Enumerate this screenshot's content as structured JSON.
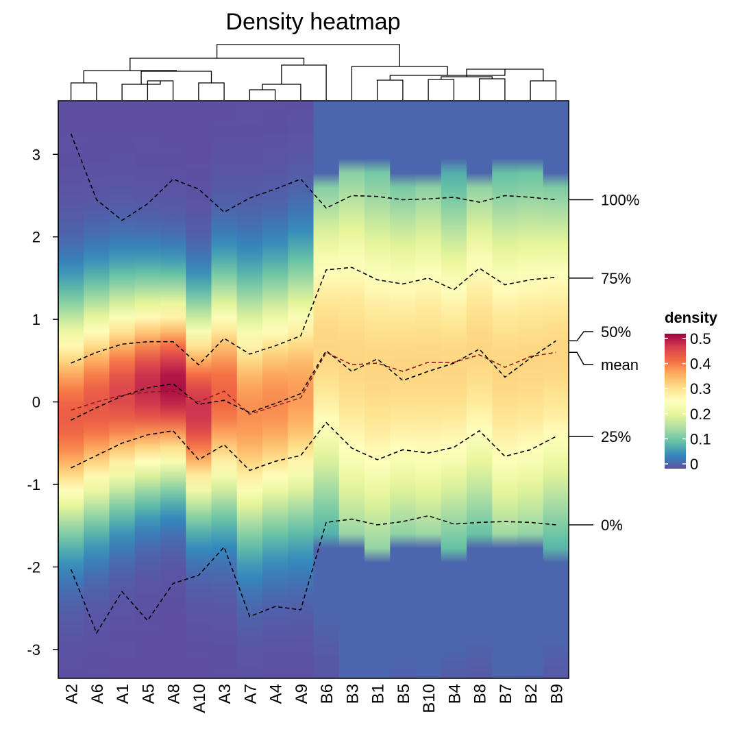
{
  "chart_data": {
    "type": "heatmap",
    "title": "Density heatmap",
    "columns": [
      "A2",
      "A6",
      "A1",
      "A5",
      "A8",
      "A10",
      "A3",
      "A7",
      "A4",
      "A9",
      "B6",
      "B3",
      "B1",
      "B5",
      "B10",
      "B4",
      "B8",
      "B7",
      "B2",
      "B9"
    ],
    "ylim": [
      -3.35,
      3.65
    ],
    "yticks": [
      3,
      2,
      1,
      0,
      -1,
      -2,
      -3
    ],
    "ytick_labels": [
      "3",
      "2",
      "1",
      "0",
      "-1",
      "-2",
      "-3"
    ],
    "quantile_lines": [
      {
        "name": "100%",
        "values": [
          3.25,
          2.45,
          2.2,
          2.4,
          2.7,
          2.58,
          2.3,
          2.47,
          2.58,
          2.7,
          2.35,
          2.5,
          2.49,
          2.45,
          2.46,
          2.48,
          2.42,
          2.5,
          2.48,
          2.45
        ]
      },
      {
        "name": "75%",
        "values": [
          0.47,
          0.6,
          0.7,
          0.73,
          0.73,
          0.45,
          0.77,
          0.58,
          0.68,
          0.8,
          1.6,
          1.63,
          1.48,
          1.43,
          1.5,
          1.36,
          1.62,
          1.42,
          1.48,
          1.51
        ]
      },
      {
        "name": "50%",
        "values": [
          -0.22,
          -0.07,
          0.07,
          0.17,
          0.22,
          -0.03,
          0.02,
          -0.13,
          -0.02,
          0.1,
          0.62,
          0.37,
          0.52,
          0.26,
          0.37,
          0.47,
          0.64,
          0.3,
          0.53,
          0.74
        ]
      },
      {
        "name": "25%",
        "values": [
          -0.8,
          -0.65,
          -0.5,
          -0.4,
          -0.35,
          -0.7,
          -0.52,
          -0.83,
          -0.72,
          -0.65,
          -0.25,
          -0.56,
          -0.7,
          -0.58,
          -0.62,
          -0.55,
          -0.35,
          -0.66,
          -0.58,
          -0.42
        ]
      },
      {
        "name": "0%",
        "values": [
          -2.03,
          -2.8,
          -2.3,
          -2.65,
          -2.2,
          -2.1,
          -1.76,
          -2.6,
          -2.48,
          -2.52,
          -1.46,
          -1.42,
          -1.49,
          -1.45,
          -1.38,
          -1.48,
          -1.46,
          -1.45,
          -1.46,
          -1.49
        ]
      }
    ],
    "mean_line": {
      "name": "mean",
      "color": "#8b1a1a",
      "values": [
        -0.1,
        0.0,
        0.08,
        0.12,
        0.13,
        0.0,
        0.13,
        -0.15,
        -0.05,
        0.05,
        0.6,
        0.45,
        0.47,
        0.37,
        0.48,
        0.48,
        0.57,
        0.42,
        0.55,
        0.6
      ]
    },
    "right_annotations": [
      {
        "label": "100%",
        "value": 2.45
      },
      {
        "label": "75%",
        "value": 1.5
      },
      {
        "label": "50%",
        "value": 0.74
      },
      {
        "label": "mean",
        "value": 0.6
      },
      {
        "label": "25%",
        "value": -0.42
      },
      {
        "label": "0%",
        "value": -1.49
      }
    ],
    "density_profile": {
      "A": {
        "center": 0.1,
        "spread": 0.95,
        "peak": 0.44
      },
      "B": {
        "center": 0.55,
        "spread": 1.18,
        "peak": 0.31
      }
    },
    "legend": {
      "title": "density",
      "ticks": [
        0.5,
        0.4,
        0.3,
        0.2,
        0.1,
        0
      ],
      "tick_labels": [
        "0.5",
        "0.4",
        "0.3",
        "0.2",
        "0.1",
        "0"
      ],
      "range": [
        0,
        0.5
      ]
    },
    "palette": [
      "#5E4FA2",
      "#3288BD",
      "#66C2A5",
      "#ABDDA4",
      "#E6F598",
      "#FFFFBF",
      "#FEE08B",
      "#FDAE61",
      "#F46D43",
      "#D53E4F",
      "#9E0142"
    ],
    "dendrogram": "hierarchical clustering of columns, two main clusters A and B"
  }
}
